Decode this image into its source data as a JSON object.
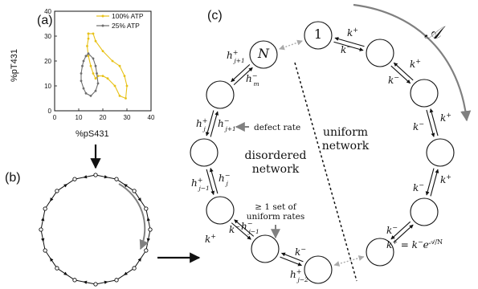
{
  "panel_a": {
    "label": "(a)",
    "chart_data": {
      "type": "line",
      "xlabel": "%pS431",
      "ylabel": "%pT431",
      "xlim": [
        0,
        40
      ],
      "ylim": [
        0,
        40
      ],
      "xticks": [
        "0",
        "10",
        "20",
        "30",
        "40"
      ],
      "yticks": [
        "0",
        "10",
        "20",
        "30",
        "40"
      ],
      "legend_position": "top-right",
      "series": [
        {
          "name": "100% ATP",
          "color": "#e8c21a",
          "points": [
            [
              14,
              31
            ],
            [
              16,
              31
            ],
            [
              17,
              28
            ],
            [
              20,
              24
            ],
            [
              24,
              20
            ],
            [
              27,
              18
            ],
            [
              29,
              14
            ],
            [
              30,
              10
            ],
            [
              29.5,
              5
            ],
            [
              27,
              6
            ],
            [
              25,
              10
            ],
            [
              22,
              13
            ],
            [
              20,
              14
            ],
            [
              18,
              14
            ],
            [
              17,
              13
            ],
            [
              16,
              15
            ],
            [
              15,
              18
            ],
            [
              14,
              22
            ],
            [
              13.5,
              26
            ],
            [
              14,
              29
            ],
            [
              14,
              31
            ]
          ]
        },
        {
          "name": "25% ATP",
          "color": "#6e6e6e",
          "points": [
            [
              13,
              22
            ],
            [
              14,
              23
            ],
            [
              16,
              21
            ],
            [
              17,
              18
            ],
            [
              17.5,
              15
            ],
            [
              18,
              11
            ],
            [
              17,
              8
            ],
            [
              15,
              6
            ],
            [
              13,
              7
            ],
            [
              12,
              9
            ],
            [
              11,
              12
            ],
            [
              11,
              15
            ],
            [
              11.5,
              18
            ],
            [
              12,
              20
            ],
            [
              13,
              22
            ]
          ]
        }
      ]
    }
  },
  "panel_b": {
    "label": "(b)"
  },
  "panel_c": {
    "label": "(c)",
    "affinity": "𝒜",
    "node_1": "1",
    "node_N": "N",
    "region_uniform": [
      "uniform",
      "network"
    ],
    "region_disordered": [
      "disordered",
      "network"
    ],
    "defect_label": "defect rate",
    "set_label": [
      "≥ 1 set of",
      "uniform rates"
    ],
    "k_plus": "k",
    "k_minus": "k",
    "sup_plus": "+",
    "sup_minus": "−",
    "h": "h",
    "m": "m",
    "j": "j",
    "jp1": "j+1",
    "jm1": "j−1",
    "jm2": "j−2",
    "uniform_eq_prefix": "= ",
    "uniform_eq_e": "e",
    "uniform_eq_exp": "𝒜/N"
  },
  "colors": {
    "yellow": "#e8c21a",
    "gray_series": "#6e6e6e",
    "arrow_gray": "#808080",
    "dashed_gray": "#aaaaaa",
    "ink": "#111111"
  }
}
